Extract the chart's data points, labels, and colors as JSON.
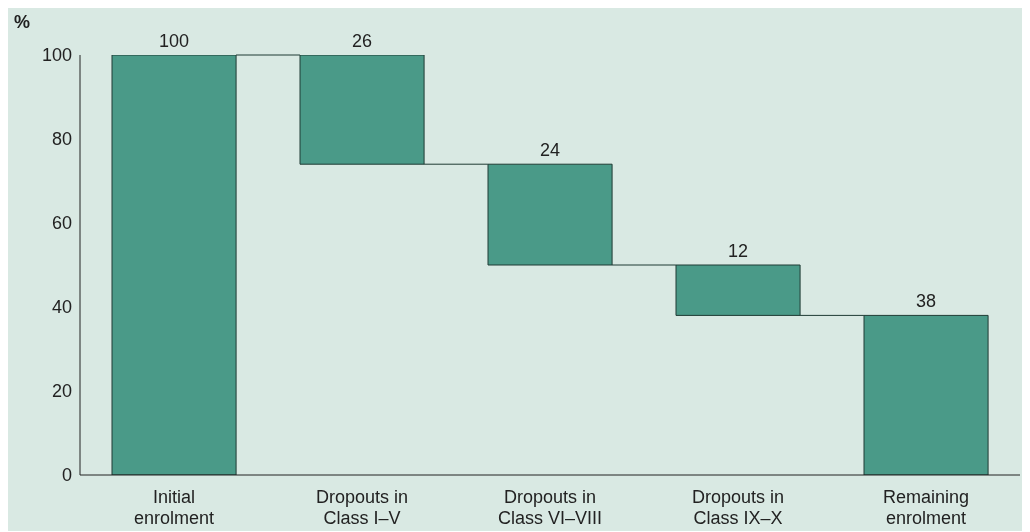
{
  "chart_data": {
    "type": "bar",
    "ylabel": "%",
    "categories": [
      "Initial enrolment",
      "Dropouts in Class I–V",
      "Dropouts in Class VI–VIII",
      "Dropouts in Class IX–X",
      "Remaining enrolment"
    ],
    "values": [
      100,
      26,
      24,
      12,
      38
    ],
    "base": [
      0,
      74,
      50,
      38,
      0
    ],
    "color": "#4a9a88",
    "ylim": [
      0,
      100
    ],
    "yticks": [
      0,
      20,
      40,
      60,
      80,
      100
    ],
    "grid": false,
    "legend": false,
    "data_labels": true
  }
}
